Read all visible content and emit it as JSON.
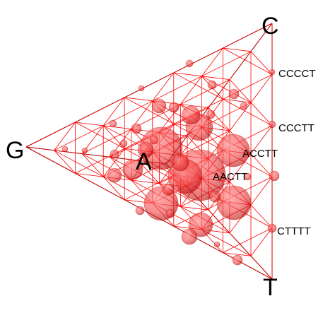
{
  "diagram": {
    "kind": "tetrahedral composition lattice (5-mer nucleotide composition simplex)",
    "vertices": {
      "G": "G",
      "C": "C",
      "T": "T",
      "A": "A"
    },
    "labels": {
      "cccct": "CCCCT",
      "ccctt": "CCCTT",
      "acctt": "ACCTT",
      "aactt": "AACTT",
      "ctttt": "CTTTT"
    },
    "colors": {
      "edge": "#000000",
      "lattice": "#ff0000",
      "sphere": "#ff3b3b",
      "sphere_rim": "#c40000"
    }
  }
}
